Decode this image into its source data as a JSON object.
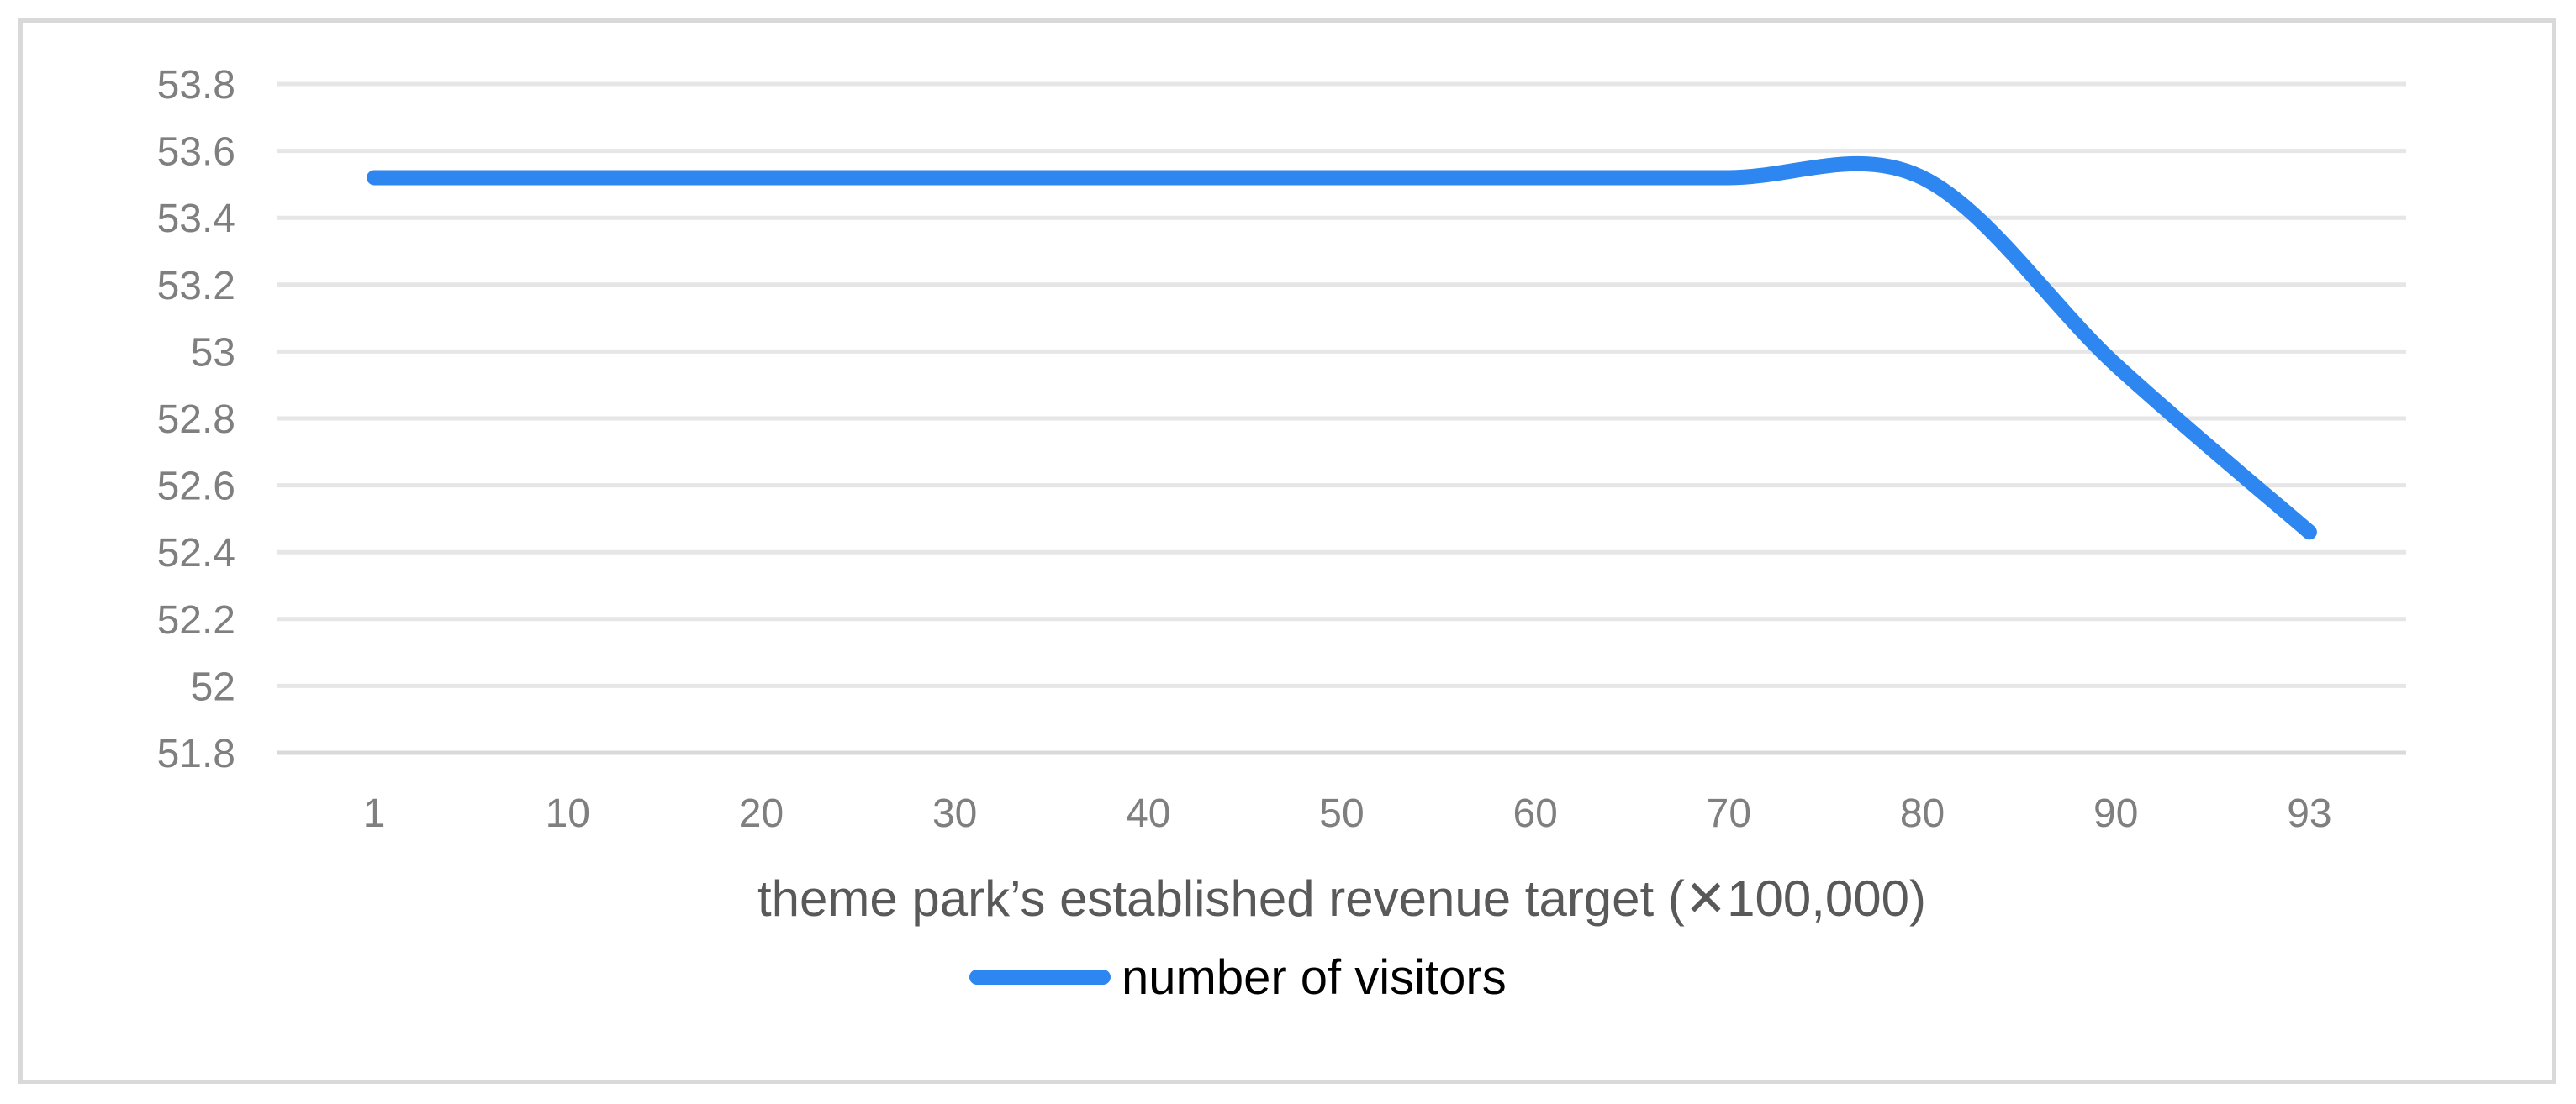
{
  "chart_data": {
    "type": "line",
    "title": "",
    "xlabel": "theme park’s established revenue target (✕100,000)",
    "ylabel": "",
    "categories": [
      "1",
      "10",
      "20",
      "30",
      "40",
      "50",
      "60",
      "70",
      "80",
      "90",
      "93"
    ],
    "series": [
      {
        "name": "number of visitors",
        "values": [
          53.52,
          53.52,
          53.52,
          53.52,
          53.52,
          53.52,
          53.52,
          53.52,
          53.52,
          52.96,
          52.46
        ]
      }
    ],
    "ylim": [
      51.8,
      53.8
    ],
    "yticks": [
      "51.8",
      "52",
      "52.2",
      "52.4",
      "52.6",
      "52.8",
      "53",
      "53.2",
      "53.4",
      "53.6",
      "53.8"
    ],
    "grid": true,
    "smooth": true,
    "legend_position": "bottom",
    "colors": {
      "series": "#2e86f0",
      "grid": "#e6e6e6",
      "axis": "#d9d9d9",
      "tick_text": "#7f7f7f",
      "axis_title_text": "#595959"
    }
  }
}
